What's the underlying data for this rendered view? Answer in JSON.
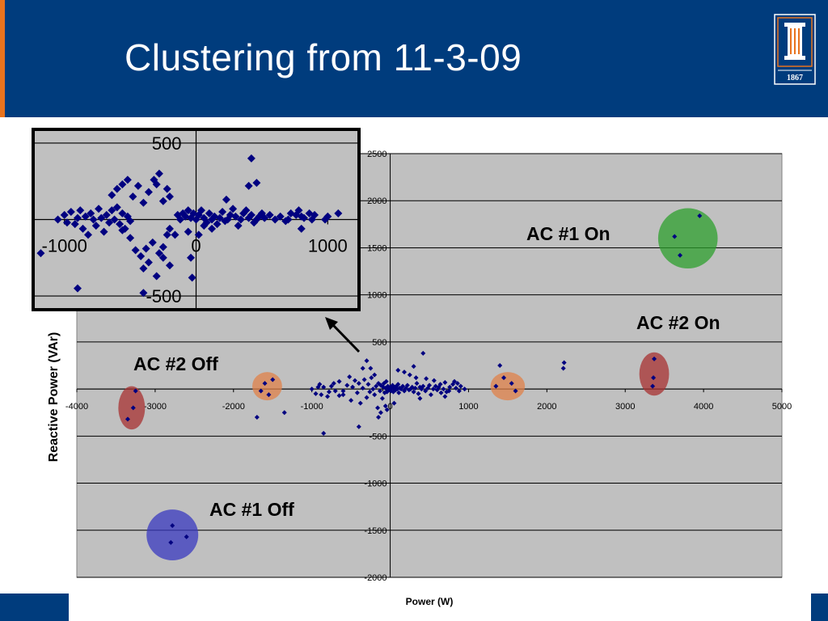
{
  "slide": {
    "title": "Clustering from 11-3-09",
    "logo_year": "1867"
  },
  "colors": {
    "header_bg": "#003c7d",
    "accent": "#e8731e",
    "plot_bg": "#c0c0c0",
    "point": "#000080"
  },
  "chart_data": [
    {
      "type": "scatter",
      "xlabel": "Power (W)",
      "ylabel": "Reactive Power (VAr)",
      "xlim": [
        -4000,
        5000
      ],
      "ylim": [
        -2000,
        2500
      ],
      "x_ticks": [
        -4000,
        -3000,
        -2000,
        -1000,
        0,
        1000,
        2000,
        3000,
        4000,
        5000
      ],
      "y_ticks": [
        -2000,
        -1500,
        -1000,
        -500,
        0,
        500,
        1000,
        1500,
        2000,
        2500
      ],
      "x_tick_labels": [
        "-4000",
        "-3000",
        "-2000",
        "-1000",
        "0",
        "1000",
        "2000",
        "3000",
        "4000",
        "5000"
      ],
      "y_tick_labels": [
        "-2000",
        "-1500",
        "-1000",
        "-500",
        "0",
        "500",
        "1000",
        "1500",
        "2000",
        "2500"
      ],
      "grid": "horizontal",
      "points": [
        [
          3950,
          1840
        ],
        [
          3630,
          1620
        ],
        [
          3700,
          1420
        ],
        [
          3370,
          320
        ],
        [
          3360,
          120
        ],
        [
          3350,
          30
        ],
        [
          -2780,
          -1450
        ],
        [
          -2600,
          -1570
        ],
        [
          -2800,
          -1630
        ],
        [
          -3250,
          -20
        ],
        [
          -3280,
          -200
        ],
        [
          -3350,
          -320
        ],
        [
          1450,
          120
        ],
        [
          1550,
          60
        ],
        [
          1600,
          -20
        ],
        [
          1350,
          30
        ],
        [
          -1600,
          60
        ],
        [
          -1500,
          100
        ],
        [
          -1550,
          -60
        ],
        [
          -1650,
          -20
        ],
        [
          2220,
          280
        ],
        [
          2210,
          220
        ],
        [
          1400,
          250
        ],
        [
          -1700,
          -300
        ],
        [
          -1350,
          -250
        ],
        [
          -850,
          -470
        ],
        [
          -400,
          -400
        ],
        [
          420,
          380
        ],
        [
          -250,
          220
        ],
        [
          -200,
          150
        ],
        [
          -350,
          220
        ],
        [
          -1000,
          0
        ],
        [
          -950,
          -50
        ],
        [
          -900,
          50
        ],
        [
          -850,
          20
        ],
        [
          -800,
          -80
        ],
        [
          -750,
          30
        ],
        [
          -700,
          -20
        ],
        [
          -650,
          80
        ],
        [
          -600,
          -60
        ],
        [
          -550,
          40
        ],
        [
          -520,
          130
        ],
        [
          -500,
          -120
        ],
        [
          -480,
          20
        ],
        [
          -450,
          90
        ],
        [
          -420,
          -40
        ],
        [
          -400,
          60
        ],
        [
          -380,
          -150
        ],
        [
          -350,
          10
        ],
        [
          -330,
          100
        ],
        [
          -300,
          -90
        ],
        [
          -280,
          50
        ],
        [
          -260,
          -30
        ],
        [
          -240,
          120
        ],
        [
          -220,
          0
        ],
        [
          -200,
          -60
        ],
        [
          -180,
          30
        ],
        [
          -160,
          -200
        ],
        [
          -150,
          60
        ],
        [
          -130,
          -20
        ],
        [
          -120,
          40
        ],
        [
          -100,
          -100
        ],
        [
          -90,
          20
        ],
        [
          -80,
          60
        ],
        [
          -70,
          -40
        ],
        [
          -60,
          10
        ],
        [
          -50,
          80
        ],
        [
          -40,
          -30
        ],
        [
          -30,
          30
        ],
        [
          -20,
          0
        ],
        [
          -10,
          -10
        ],
        [
          0,
          20
        ],
        [
          10,
          -20
        ],
        [
          20,
          10
        ],
        [
          30,
          40
        ],
        [
          40,
          -30
        ],
        [
          50,
          0
        ],
        [
          60,
          20
        ],
        [
          70,
          -10
        ],
        [
          80,
          30
        ],
        [
          90,
          0
        ],
        [
          100,
          50
        ],
        [
          110,
          -40
        ],
        [
          120,
          10
        ],
        [
          140,
          0
        ],
        [
          160,
          30
        ],
        [
          180,
          -20
        ],
        [
          200,
          10
        ],
        [
          220,
          40
        ],
        [
          240,
          -10
        ],
        [
          260,
          0
        ],
        [
          280,
          20
        ],
        [
          300,
          -30
        ],
        [
          320,
          10
        ],
        [
          340,
          60
        ],
        [
          360,
          -50
        ],
        [
          380,
          20
        ],
        [
          400,
          0
        ],
        [
          420,
          30
        ],
        [
          450,
          -20
        ],
        [
          480,
          10
        ],
        [
          500,
          40
        ],
        [
          520,
          -60
        ],
        [
          550,
          0
        ],
        [
          580,
          30
        ],
        [
          600,
          -10
        ],
        [
          620,
          20
        ],
        [
          650,
          -40
        ],
        [
          680,
          0
        ],
        [
          720,
          -30
        ],
        [
          760,
          20
        ],
        [
          800,
          50
        ],
        [
          820,
          80
        ],
        [
          840,
          10
        ],
        [
          860,
          60
        ],
        [
          880,
          -20
        ],
        [
          900,
          30
        ],
        [
          700,
          -80
        ],
        [
          750,
          -20
        ],
        [
          560,
          90
        ],
        [
          460,
          110
        ],
        [
          380,
          -100
        ],
        [
          250,
          150
        ],
        [
          180,
          180
        ],
        [
          100,
          200
        ],
        [
          300,
          240
        ],
        [
          330,
          120
        ],
        [
          -300,
          300
        ],
        [
          -150,
          -300
        ],
        [
          -120,
          -250
        ],
        [
          -60,
          -180
        ],
        [
          -40,
          -220
        ],
        [
          50,
          -150
        ],
        [
          -600,
          -20
        ],
        [
          -650,
          -70
        ],
        [
          -720,
          60
        ],
        [
          -780,
          -30
        ],
        [
          -880,
          -60
        ],
        [
          -920,
          20
        ],
        [
          640,
          50
        ],
        [
          700,
          70
        ],
        [
          950,
          0
        ]
      ]
    },
    {
      "type": "scatter",
      "xlim": [
        -1250,
        1250
      ],
      "ylim": [
        -600,
        600
      ],
      "x_tick_labels": [
        "-1000",
        "0",
        "1000"
      ],
      "y_tick_labels": [
        "500",
        "-500"
      ],
      "points": [
        [
          -1180,
          -220
        ],
        [
          -900,
          -450
        ],
        [
          -1050,
          0
        ],
        [
          -1000,
          30
        ],
        [
          -980,
          -20
        ],
        [
          -950,
          50
        ],
        [
          -920,
          -30
        ],
        [
          -900,
          10
        ],
        [
          -880,
          60
        ],
        [
          -860,
          -60
        ],
        [
          -840,
          20
        ],
        [
          -820,
          -100
        ],
        [
          -800,
          40
        ],
        [
          -780,
          0
        ],
        [
          -760,
          -40
        ],
        [
          -740,
          70
        ],
        [
          -720,
          10
        ],
        [
          -700,
          -80
        ],
        [
          -680,
          30
        ],
        [
          -660,
          -20
        ],
        [
          -640,
          60
        ],
        [
          -620,
          0
        ],
        [
          -600,
          80
        ],
        [
          -580,
          -30
        ],
        [
          -560,
          40
        ],
        [
          -540,
          -60
        ],
        [
          -520,
          20
        ],
        [
          -500,
          -10
        ],
        [
          -640,
          160
        ],
        [
          -600,
          200
        ],
        [
          -560,
          230
        ],
        [
          -520,
          260
        ],
        [
          -480,
          150
        ],
        [
          -440,
          220
        ],
        [
          -400,
          110
        ],
        [
          -360,
          180
        ],
        [
          -320,
          260
        ],
        [
          -300,
          230
        ],
        [
          -280,
          300
        ],
        [
          -250,
          120
        ],
        [
          -220,
          200
        ],
        [
          -200,
          150
        ],
        [
          -560,
          -70
        ],
        [
          -500,
          -120
        ],
        [
          -460,
          -200
        ],
        [
          -420,
          -240
        ],
        [
          -400,
          -320
        ],
        [
          -380,
          -190
        ],
        [
          -360,
          -280
        ],
        [
          -330,
          -150
        ],
        [
          -300,
          -370
        ],
        [
          -280,
          -220
        ],
        [
          -250,
          -180
        ],
        [
          -220,
          -100
        ],
        [
          -200,
          -60
        ],
        [
          -160,
          -100
        ],
        [
          -140,
          30
        ],
        [
          -400,
          -480
        ],
        [
          -120,
          0
        ],
        [
          -100,
          40
        ],
        [
          -80,
          20
        ],
        [
          -60,
          60
        ],
        [
          -40,
          10
        ],
        [
          -20,
          40
        ],
        [
          0,
          0
        ],
        [
          20,
          30
        ],
        [
          40,
          60
        ],
        [
          60,
          10
        ],
        [
          80,
          -20
        ],
        [
          100,
          40
        ],
        [
          120,
          0
        ],
        [
          140,
          20
        ],
        [
          160,
          -30
        ],
        [
          180,
          10
        ],
        [
          200,
          50
        ],
        [
          220,
          -10
        ],
        [
          240,
          0
        ],
        [
          260,
          30
        ],
        [
          280,
          70
        ],
        [
          300,
          20
        ],
        [
          320,
          -40
        ],
        [
          340,
          0
        ],
        [
          360,
          40
        ],
        [
          380,
          60
        ],
        [
          400,
          10
        ],
        [
          420,
          30
        ],
        [
          440,
          -20
        ],
        [
          460,
          0
        ],
        [
          480,
          20
        ],
        [
          500,
          40
        ],
        [
          520,
          10
        ],
        [
          560,
          30
        ],
        [
          600,
          0
        ],
        [
          640,
          20
        ],
        [
          680,
          -10
        ],
        [
          720,
          40
        ],
        [
          760,
          30
        ],
        [
          780,
          60
        ],
        [
          800,
          20
        ],
        [
          820,
          10
        ],
        [
          860,
          40
        ],
        [
          880,
          0
        ],
        [
          900,
          30
        ],
        [
          980,
          0
        ],
        [
          1000,
          20
        ],
        [
          1080,
          40
        ],
        [
          800,
          -60
        ],
        [
          700,
          0
        ],
        [
          120,
          -60
        ],
        [
          60,
          -40
        ],
        [
          20,
          -100
        ],
        [
          -60,
          -80
        ],
        [
          420,
          400
        ],
        [
          400,
          220
        ],
        [
          460,
          240
        ],
        [
          230,
          130
        ],
        [
          -40,
          -250
        ],
        [
          -30,
          -380
        ],
        [
          -200,
          -300
        ],
        [
          -250,
          -250
        ]
      ]
    }
  ],
  "annotations": [
    {
      "label": "AC #1 On",
      "cx": 3800,
      "cy": 1600,
      "rx": 380,
      "ry": 320,
      "color": "#2ea02e"
    },
    {
      "label": "AC #2 On",
      "cx": 3370,
      "cy": 160,
      "rx": 190,
      "ry": 230,
      "color": "#a83232"
    },
    {
      "label": "AC #2 Off",
      "cx": -3300,
      "cy": -200,
      "rx": 170,
      "ry": 230,
      "color": "#a83232"
    },
    {
      "label": "AC #1 Off",
      "cx": -2780,
      "cy": -1550,
      "rx": 330,
      "ry": 270,
      "color": "#3a3ac0"
    },
    {
      "label": "",
      "cx": -1570,
      "cy": 30,
      "rx": 190,
      "ry": 150,
      "color": "#e0824a"
    },
    {
      "label": "",
      "cx": 1500,
      "cy": 30,
      "rx": 220,
      "ry": 150,
      "color": "#e0824a"
    }
  ]
}
